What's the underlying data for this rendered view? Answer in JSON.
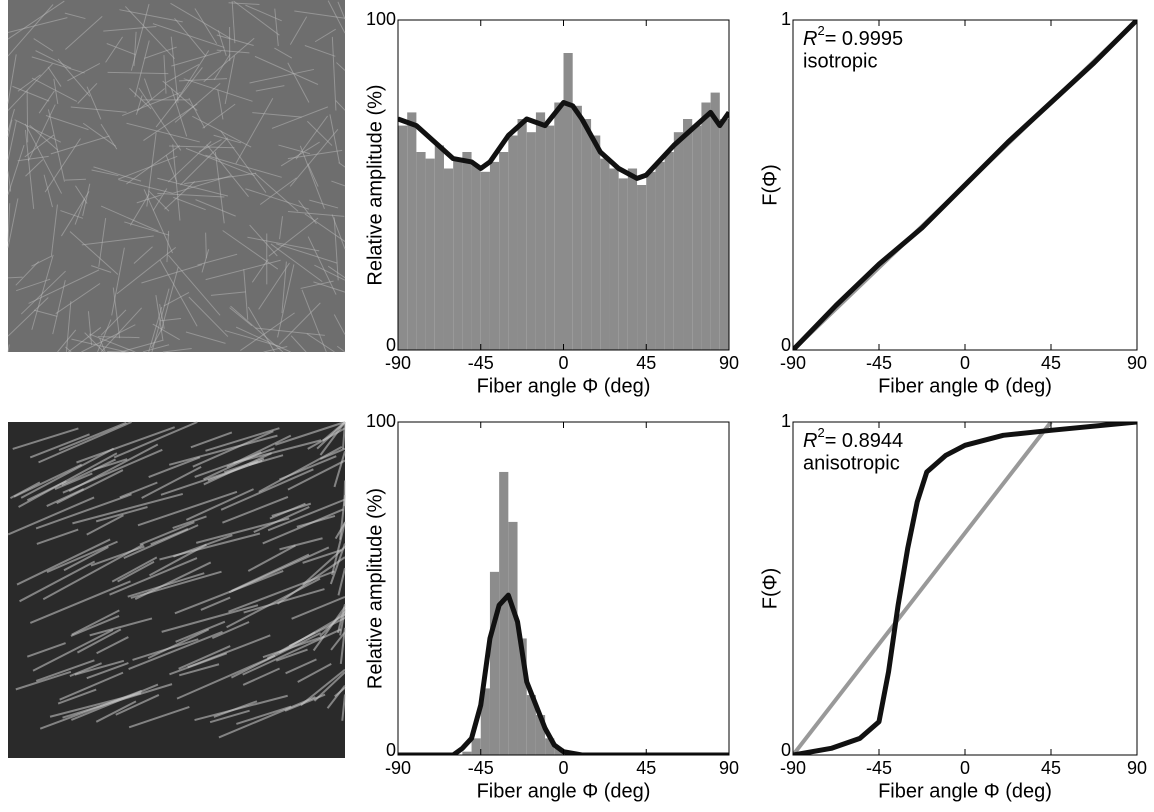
{
  "chart_data": [
    {
      "type": "histogram",
      "xlabel": "Fiber angle Φ (deg)",
      "ylabel": "Relative amplitude (%)",
      "xlim": [
        -90,
        90
      ],
      "xticks": [
        -90,
        -45,
        0,
        45,
        90
      ],
      "ylim": [
        0,
        100
      ],
      "yticks": [
        0,
        100
      ],
      "color": "#8c8c8c",
      "bins": [
        -90,
        -85,
        -80,
        -75,
        -70,
        -65,
        -60,
        -55,
        -50,
        -45,
        -40,
        -35,
        -30,
        -25,
        -20,
        -15,
        -10,
        -5,
        0,
        5,
        10,
        15,
        20,
        25,
        30,
        35,
        40,
        45,
        50,
        55,
        60,
        65,
        70,
        75,
        80,
        85,
        90
      ],
      "values": [
        68,
        72,
        60,
        58,
        62,
        55,
        58,
        60,
        56,
        54,
        57,
        60,
        65,
        70,
        66,
        72,
        68,
        75,
        90,
        74,
        70,
        65,
        58,
        55,
        52,
        55,
        50,
        54,
        57,
        60,
        66,
        70,
        68,
        75,
        78,
        70
      ],
      "line": {
        "color": "#111111",
        "x": [
          -90,
          -80,
          -70,
          -60,
          -50,
          -45,
          -40,
          -30,
          -20,
          -10,
          0,
          5,
          10,
          20,
          30,
          40,
          45,
          50,
          60,
          70,
          80,
          85,
          90
        ],
        "values": [
          70,
          68,
          63,
          58,
          57,
          55,
          57,
          65,
          70,
          68,
          75,
          74,
          70,
          60,
          55,
          52,
          53,
          56,
          62,
          67,
          72,
          68,
          72
        ]
      }
    },
    {
      "type": "line",
      "xlabel": "Fiber angle Φ (deg)",
      "ylabel": "F(Φ)",
      "xlim": [
        -90,
        90
      ],
      "xticks": [
        -90,
        -45,
        0,
        45,
        90
      ],
      "ylim": [
        0,
        1
      ],
      "yticks": [
        0,
        1
      ],
      "annotation": {
        "symbol": "R",
        "exponent": "2",
        "value": "= 0.9995",
        "note": "isotropic"
      },
      "series": [
        {
          "color": "#111111",
          "x": [
            -90,
            -67.5,
            -45,
            -22.5,
            0,
            22.5,
            45,
            67.5,
            90
          ],
          "values": [
            0,
            0.135,
            0.26,
            0.37,
            0.5,
            0.63,
            0.75,
            0.87,
            1
          ]
        },
        {
          "color": "#999999",
          "x": [
            -90,
            90
          ],
          "values": [
            0,
            1
          ]
        }
      ]
    },
    {
      "type": "histogram",
      "xlabel": "Fiber angle Φ (deg)",
      "ylabel": "Relative amplitude (%)",
      "xlim": [
        -90,
        90
      ],
      "xticks": [
        -90,
        -45,
        0,
        45,
        90
      ],
      "ylim": [
        0,
        100
      ],
      "yticks": [
        0,
        100
      ],
      "color": "#8c8c8c",
      "bins": [
        -90,
        -85,
        -80,
        -75,
        -70,
        -65,
        -60,
        -55,
        -50,
        -45,
        -40,
        -35,
        -30,
        -25,
        -20,
        -15,
        -10,
        -5,
        0,
        5,
        10,
        15,
        20,
        25,
        30,
        35,
        40,
        45,
        50,
        55,
        60,
        65,
        70,
        75,
        80,
        85,
        90
      ],
      "values": [
        0,
        0,
        0,
        0,
        0,
        0,
        0,
        1,
        5,
        20,
        55,
        85,
        70,
        35,
        18,
        12,
        5,
        2,
        0,
        0,
        0,
        0,
        0,
        0,
        0,
        0,
        0,
        0,
        0,
        0,
        0,
        0,
        0,
        0,
        0,
        0
      ],
      "line": {
        "color": "#111111",
        "x": [
          -90,
          -60,
          -55,
          -50,
          -45,
          -40,
          -35,
          -30,
          -25,
          -20,
          -15,
          -10,
          -5,
          0,
          10,
          90
        ],
        "values": [
          0,
          0,
          2,
          5,
          15,
          35,
          45,
          48,
          40,
          22,
          15,
          8,
          3,
          1,
          0,
          0
        ]
      }
    },
    {
      "type": "line",
      "xlabel": "Fiber angle Φ (deg)",
      "ylabel": "F(Φ)",
      "xlim": [
        -90,
        90
      ],
      "xticks": [
        -90,
        -45,
        0,
        45,
        90
      ],
      "ylim": [
        0,
        1
      ],
      "yticks": [
        0,
        1
      ],
      "annotation": {
        "symbol": "R",
        "exponent": "2",
        "value": "= 0.8944",
        "note": "anisotropic"
      },
      "series": [
        {
          "color": "#111111",
          "x": [
            -90,
            -70,
            -55,
            -45,
            -40,
            -35,
            -30,
            -25,
            -20,
            -10,
            0,
            20,
            45,
            90
          ],
          "values": [
            0,
            0.02,
            0.05,
            0.1,
            0.25,
            0.45,
            0.62,
            0.76,
            0.85,
            0.9,
            0.93,
            0.96,
            0.975,
            1
          ]
        },
        {
          "color": "#999999",
          "x": [
            -90,
            45
          ],
          "values": [
            0,
            1
          ]
        }
      ]
    }
  ]
}
